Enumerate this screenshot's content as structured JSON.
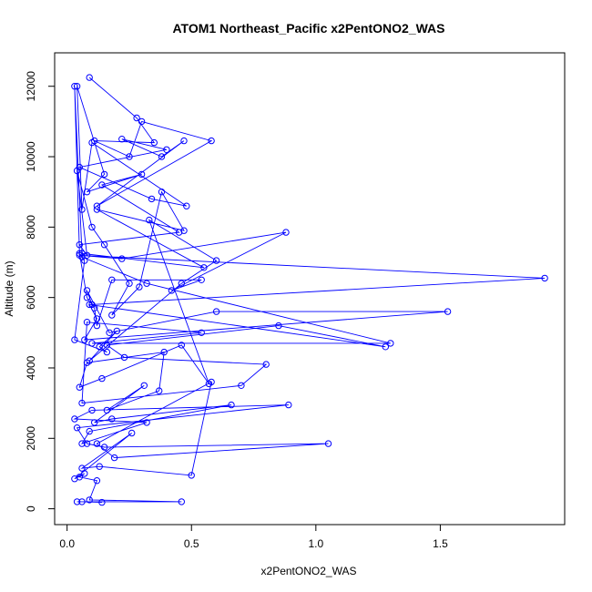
{
  "chart_data": {
    "type": "line",
    "title": "ATOM1 Northeast_Pacific x2PentONO2_WAS",
    "xlabel": "x2PentONO2_WAS",
    "ylabel": "Altitude (m)",
    "xlim": [
      -0.05,
      2.0
    ],
    "ylim": [
      -450,
      12950
    ],
    "x_ticks": [
      0.0,
      0.5,
      1.0,
      1.5
    ],
    "x_tick_labels": [
      "0.0",
      "0.5",
      "1.0",
      "1.5"
    ],
    "y_ticks": [
      0,
      2000,
      4000,
      6000,
      8000,
      10000,
      12000
    ],
    "y_tick_labels": [
      "0",
      "2000",
      "4000",
      "6000",
      "8000",
      "10000",
      "12000"
    ],
    "grid": false,
    "legend": "none",
    "markers": "open-circle",
    "colors": {
      "series": "#0000ff",
      "frame": "#000000"
    },
    "series": [
      {
        "x": [
          0.09,
          0.28,
          0.35,
          0.11,
          0.25,
          0.3,
          0.58,
          0.12,
          0.47,
          0.38,
          0.22,
          0.4,
          0.05,
          0.34,
          0.48,
          0.1,
          0.06,
          0.04,
          0.15,
          0.08,
          0.3,
          0.14,
          0.45,
          0.05,
          0.08,
          0.04,
          0.1,
          0.15,
          0.25,
          0.18,
          0.29,
          0.38,
          0.47,
          0.12,
          0.55,
          0.06,
          0.03,
          0.05,
          0.08,
          0.11,
          0.12,
          0.18,
          0.54,
          0.42,
          0.88,
          0.22,
          0.05,
          1.92,
          0.1,
          0.08,
          0.17,
          0.6,
          1.53,
          0.07,
          0.12,
          0.09,
          1.28,
          0.85,
          0.16,
          0.23,
          0.8,
          0.7,
          0.06,
          0.08,
          0.54,
          0.1,
          1.3,
          0.32,
          0.06,
          0.07,
          0.03,
          0.16,
          0.13,
          0.2,
          0.09,
          0.46,
          0.6,
          0.33,
          0.57,
          0.46,
          0.14,
          0.05,
          0.08,
          0.39,
          0.37,
          0.16,
          0.31,
          0.11,
          0.18,
          0.66,
          0.09,
          0.06,
          0.32,
          0.03,
          0.1,
          0.89,
          0.04,
          0.08,
          0.15,
          1.05,
          0.19,
          0.12,
          0.58,
          0.5,
          0.13,
          0.06,
          0.26,
          0.03,
          0.07,
          0.05,
          0.12,
          0.09,
          0.46,
          0.04,
          0.06,
          0.14
        ],
        "y": [
          12250,
          11100,
          10400,
          10450,
          10000,
          11000,
          10450,
          8600,
          10450,
          10000,
          10500,
          10200,
          9700,
          8800,
          8600,
          10400,
          8500,
          12000,
          9500,
          9000,
          9500,
          9200,
          7850,
          7500,
          7200,
          9600,
          8000,
          7500,
          6400,
          5500,
          6300,
          9000,
          7900,
          8500,
          6850,
          7250,
          12000,
          7250,
          6000,
          5700,
          5200,
          6500,
          6500,
          6200,
          7850,
          7100,
          7200,
          6550,
          5800,
          6200,
          5000,
          5600,
          5600,
          4800,
          5400,
          5800,
          4600,
          5200,
          4650,
          4300,
          4100,
          3500,
          3000,
          5300,
          5000,
          4700,
          4700,
          6400,
          7150,
          7050,
          4800,
          4450,
          4600,
          5050,
          4200,
          6400,
          7050,
          8200,
          3550,
          4650,
          3700,
          3450,
          4150,
          4450,
          3350,
          2800,
          3500,
          2450,
          2550,
          2950,
          2200,
          1850,
          2450,
          2550,
          2800,
          2950,
          2300,
          1850,
          1750,
          1850,
          1450,
          1850,
          3600,
          950,
          1200,
          1150,
          2150,
          850,
          1000,
          900,
          800,
          250,
          200,
          200,
          200,
          180
        ]
      }
    ]
  }
}
